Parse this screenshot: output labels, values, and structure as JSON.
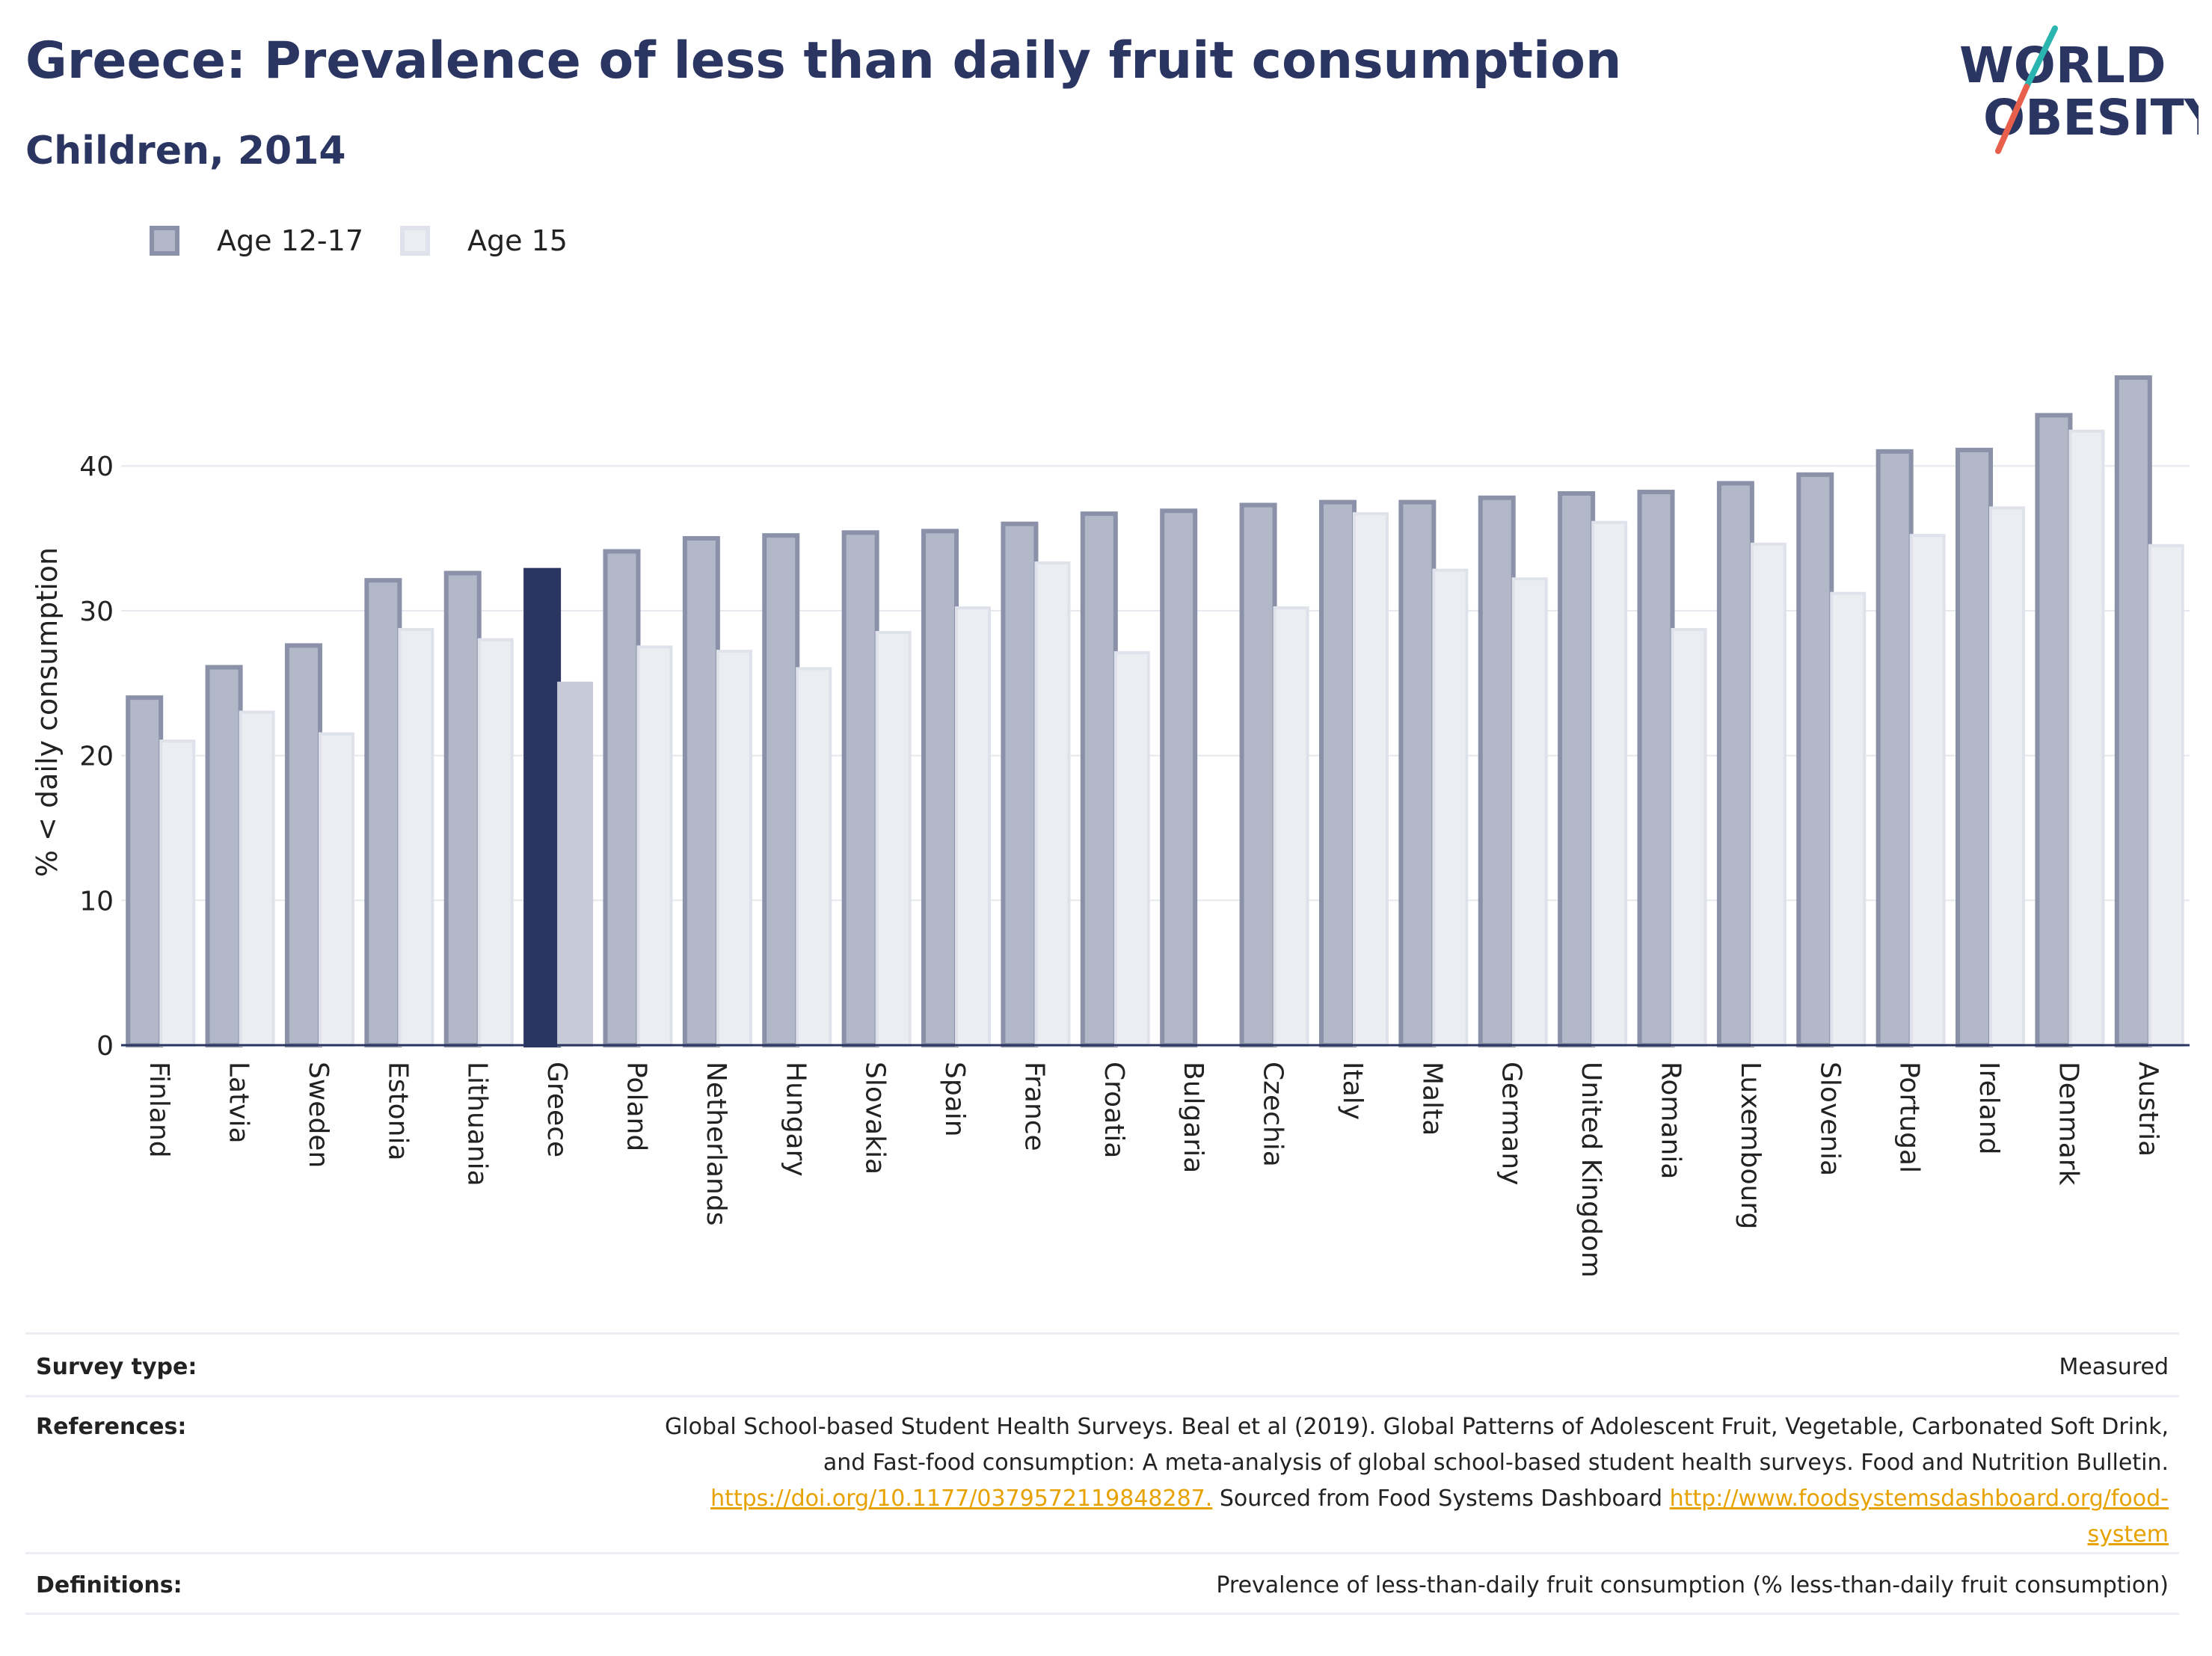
{
  "header": {
    "title": "Greece: Prevalence of less than daily fruit consumption",
    "subtitle": "Children, 2014"
  },
  "logo": {
    "line1": "WORLD",
    "line2": "OBESITY"
  },
  "legend": [
    {
      "label": "Age 12-17",
      "color": "#b3b8c9",
      "border": "#8a91a8"
    },
    {
      "label": "Age 15",
      "color": "#ebedf2",
      "border": "#dfe2ea"
    }
  ],
  "colors": {
    "highlight_primary": "#2a3561",
    "highlight_secondary": "#c7cad8",
    "series1_fill": "#b3b8c9",
    "series1_border": "#8a91a8",
    "series2_fill": "#ebedf2",
    "series2_border": "#dfe2ea",
    "grid": "#e6e8ee",
    "axis": "#2a3561"
  },
  "chart_data": {
    "type": "bar",
    "ylabel": "% < daily consumption",
    "ylim": [
      0,
      46
    ],
    "yticks": [
      0,
      10,
      20,
      30,
      40
    ],
    "grid": true,
    "legend_position": "top-left",
    "highlight_category": "Greece",
    "categories": [
      "Finland",
      "Latvia",
      "Sweden",
      "Estonia",
      "Lithuania",
      "Greece",
      "Poland",
      "Netherlands",
      "Hungary",
      "Slovakia",
      "Spain",
      "France",
      "Croatia",
      "Bulgaria",
      "Czechia",
      "Italy",
      "Malta",
      "Germany",
      "United Kingdom",
      "Romania",
      "Luxembourg",
      "Slovenia",
      "Portugal",
      "Ireland",
      "Denmark",
      "Austria"
    ],
    "series": [
      {
        "name": "Age 12-17",
        "values": [
          24,
          26.1,
          27.6,
          32.1,
          32.6,
          32.8,
          34.1,
          35,
          35.2,
          35.4,
          35.5,
          36,
          36.7,
          36.9,
          37.3,
          37.5,
          37.5,
          37.8,
          38.1,
          38.2,
          38.8,
          39.4,
          41,
          41.1,
          43.5,
          46.1
        ]
      },
      {
        "name": "Age 15",
        "values": [
          21,
          23,
          21.5,
          28.7,
          28,
          25,
          27.5,
          27.2,
          26,
          28.5,
          30.2,
          33.3,
          27.1,
          null,
          30.2,
          36.7,
          32.8,
          32.2,
          36.1,
          28.7,
          34.6,
          31.2,
          35.2,
          37.1,
          42.4,
          34.5
        ]
      }
    ]
  },
  "info": {
    "survey_label": "Survey type:",
    "survey_value": "Measured",
    "references_label": "References:",
    "references_line1": "Global School-based Student Health Surveys. Beal et al (2019). Global Patterns of Adolescent Fruit, Vegetable, Carbonated Soft Drink,",
    "references_line2": "and Fast-food consumption: A meta-analysis of global school-based student health surveys. Food and Nutrition Bulletin.",
    "references_link1": "https://doi.org/10.1177/0379572119848287.",
    "references_mid": " Sourced from Food Systems Dashboard ",
    "references_link2a": "http://www.foodsystemsdashboard.org/food-",
    "references_link2b": "system",
    "definitions_label": "Definitions:",
    "definitions_value": "Prevalence of less-than-daily fruit consumption (% less-than-daily fruit consumption)"
  }
}
